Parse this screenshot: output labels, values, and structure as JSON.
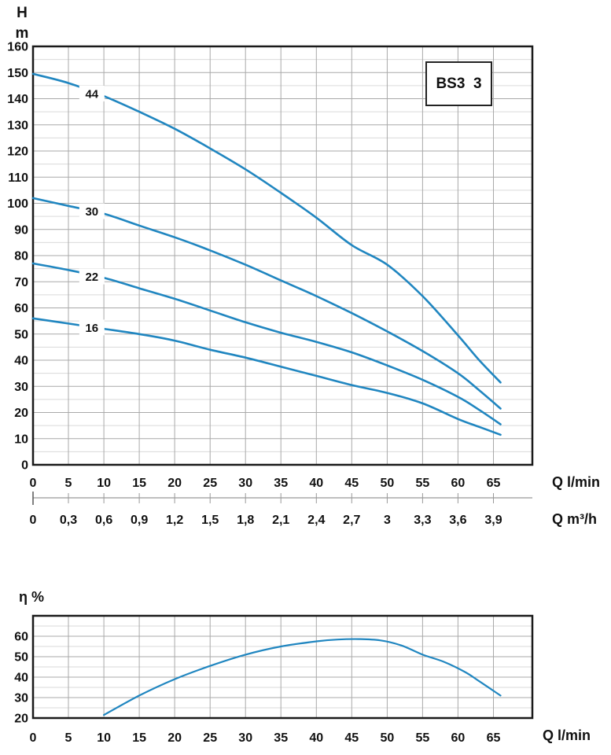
{
  "colors": {
    "curve": "#2086c0",
    "grid_major": "#a9a9a9",
    "grid_minor": "#dadada",
    "axis": "#1a1a1a",
    "text": "#111111",
    "x2_axis": "#999999"
  },
  "chart_data": [
    {
      "type": "line",
      "title": "BS3  3",
      "ylabel_lines": [
        "H",
        "m"
      ],
      "xlabel": "Q l/min",
      "x2label": "Q m³/h",
      "xlim": [
        0,
        70.5
      ],
      "ylim": [
        0,
        160
      ],
      "xticks": [
        0,
        5,
        10,
        15,
        20,
        25,
        30,
        35,
        40,
        45,
        50,
        55,
        60,
        65
      ],
      "yticks": [
        0,
        10,
        20,
        30,
        40,
        50,
        60,
        70,
        80,
        90,
        100,
        110,
        120,
        130,
        140,
        150,
        160
      ],
      "ytick_minor_step": 5,
      "grid": true,
      "x2ticks": {
        "positions_lmin": [
          0,
          5,
          10,
          15,
          20,
          25,
          30,
          35,
          40,
          45,
          50,
          55,
          60,
          65
        ],
        "labels": [
          "0",
          "0,3",
          "0,6",
          "0,9",
          "1,2",
          "1,5",
          "1,8",
          "2,1",
          "2,4",
          "2,7",
          "3",
          "3,3",
          "3,6",
          "3,9"
        ]
      },
      "series": [
        {
          "name": "44",
          "label_at": [
            8.3,
            142
          ],
          "points": [
            [
              0,
              149.5
            ],
            [
              5,
              146
            ],
            [
              10,
              141
            ],
            [
              15,
              135
            ],
            [
              20,
              128.5
            ],
            [
              25,
              121
            ],
            [
              30,
              113
            ],
            [
              35,
              104
            ],
            [
              40,
              94.5
            ],
            [
              45,
              84
            ],
            [
              50,
              76.5
            ],
            [
              55,
              64.5
            ],
            [
              60,
              49.5
            ],
            [
              63,
              40
            ],
            [
              66,
              31.5
            ]
          ]
        },
        {
          "name": "30",
          "label_at": [
            8.3,
            97
          ],
          "points": [
            [
              0,
              102
            ],
            [
              5,
              99
            ],
            [
              10,
              96
            ],
            [
              15,
              91.5
            ],
            [
              20,
              87
            ],
            [
              25,
              82
            ],
            [
              30,
              76.5
            ],
            [
              35,
              70.5
            ],
            [
              40,
              64.5
            ],
            [
              45,
              58
            ],
            [
              50,
              51
            ],
            [
              55,
              43.5
            ],
            [
              60,
              35
            ],
            [
              63,
              28.5
            ],
            [
              66,
              21.5
            ]
          ]
        },
        {
          "name": "22",
          "label_at": [
            8.3,
            72
          ],
          "points": [
            [
              0,
              77
            ],
            [
              5,
              74.5
            ],
            [
              10,
              71.5
            ],
            [
              15,
              67.5
            ],
            [
              20,
              63.5
            ],
            [
              25,
              59
            ],
            [
              30,
              54.5
            ],
            [
              35,
              50.5
            ],
            [
              40,
              47
            ],
            [
              45,
              43
            ],
            [
              50,
              38
            ],
            [
              55,
              32.5
            ],
            [
              60,
              26
            ],
            [
              63,
              21
            ],
            [
              66,
              15.5
            ]
          ]
        },
        {
          "name": "16",
          "label_at": [
            8.3,
            52.5
          ],
          "points": [
            [
              0,
              56
            ],
            [
              5,
              54
            ],
            [
              10,
              52
            ],
            [
              15,
              50
            ],
            [
              20,
              47.5
            ],
            [
              25,
              44
            ],
            [
              30,
              41
            ],
            [
              35,
              37.5
            ],
            [
              40,
              34
            ],
            [
              45,
              30.5
            ],
            [
              50,
              27.5
            ],
            [
              55,
              23.5
            ],
            [
              60,
              17.5
            ],
            [
              63,
              14.5
            ],
            [
              66,
              11.5
            ]
          ]
        }
      ]
    },
    {
      "type": "line",
      "title": "",
      "ylabel": "η %",
      "xlabel": "Q l/min",
      "xlim": [
        0,
        70.5
      ],
      "ylim": [
        20,
        70
      ],
      "xticks": [
        0,
        5,
        10,
        15,
        20,
        25,
        30,
        35,
        40,
        45,
        50,
        55,
        60,
        65
      ],
      "yticks": [
        20,
        30,
        40,
        50,
        60
      ],
      "ytick_minor_step": 5,
      "grid": true,
      "series": [
        {
          "name": "efficiency",
          "points": [
            [
              10,
              21.5
            ],
            [
              15,
              31
            ],
            [
              20,
              39
            ],
            [
              25,
              45.5
            ],
            [
              30,
              51
            ],
            [
              35,
              55
            ],
            [
              40,
              57.5
            ],
            [
              43,
              58.4
            ],
            [
              46,
              58.6
            ],
            [
              49,
              58
            ],
            [
              52,
              55.5
            ],
            [
              55,
              51
            ],
            [
              58,
              47.5
            ],
            [
              61,
              42.5
            ],
            [
              63,
              38
            ],
            [
              66,
              31
            ]
          ]
        }
      ]
    }
  ]
}
